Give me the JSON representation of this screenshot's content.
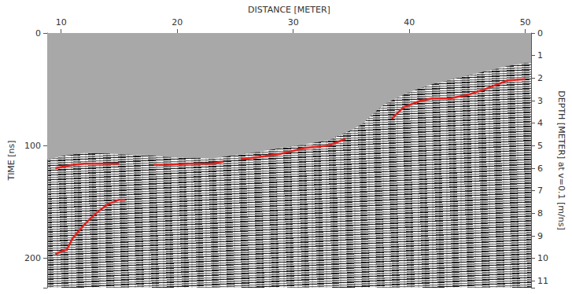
{
  "chart_data": {
    "type": "line",
    "x_label": "DISTANCE [METER]",
    "y_label": "TIME [ns]",
    "y2_label": "DEPTH [METER] at v=0.1 [m/ns]",
    "xlim": [
      8.8,
      50.5
    ],
    "xticks": [
      10,
      20,
      30,
      40,
      50
    ],
    "ylim": [
      0,
      226
    ],
    "yticks": [
      0,
      100,
      200
    ],
    "y2lim": [
      0,
      11.3
    ],
    "y2ticks": [
      0,
      1,
      2,
      3,
      4,
      5,
      6,
      7,
      8,
      9,
      10,
      11
    ],
    "grid": false,
    "series": [
      {
        "type": "area",
        "color": "#a8a8a8",
        "x": [
          8.8,
          10,
          12,
          15,
          17,
          20,
          23,
          25,
          27,
          30,
          33,
          34.5,
          35,
          36,
          37,
          38,
          40,
          42,
          44,
          46,
          48,
          50,
          50.5
        ],
        "values": [
          112,
          109,
          106,
          107,
          108,
          110,
          111,
          108,
          105,
          100,
          95,
          88,
          86,
          80,
          70,
          62,
          52,
          45,
          40,
          35,
          30,
          26,
          26
        ]
      },
      {
        "color": "#e3211c",
        "x": [
          9.5,
          10,
          11,
          12,
          14,
          15
        ],
        "values": [
          120,
          119,
          117,
          116,
          116,
          116
        ]
      },
      {
        "color": "#e3211c",
        "x": [
          18,
          19,
          21,
          23,
          24
        ],
        "values": [
          117,
          117,
          116,
          116,
          114
        ]
      },
      {
        "color": "#e3211c",
        "x": [
          25.5,
          27,
          29,
          31,
          33,
          34.5
        ],
        "values": [
          112,
          110,
          107,
          102,
          100,
          94
        ]
      },
      {
        "color": "#e3211c",
        "x": [
          38.5,
          39.5,
          41,
          42,
          43.5,
          45,
          46.5,
          47.5,
          48.5,
          50
        ],
        "values": [
          76,
          66,
          60,
          58,
          58,
          55,
          50,
          46,
          42,
          41
        ]
      },
      {
        "color": "#e3211c",
        "x": [
          9.5,
          10.5,
          11,
          12,
          13,
          14,
          15,
          15.5
        ],
        "values": [
          196,
          192,
          182,
          170,
          160,
          152,
          148,
          148
        ]
      }
    ]
  }
}
